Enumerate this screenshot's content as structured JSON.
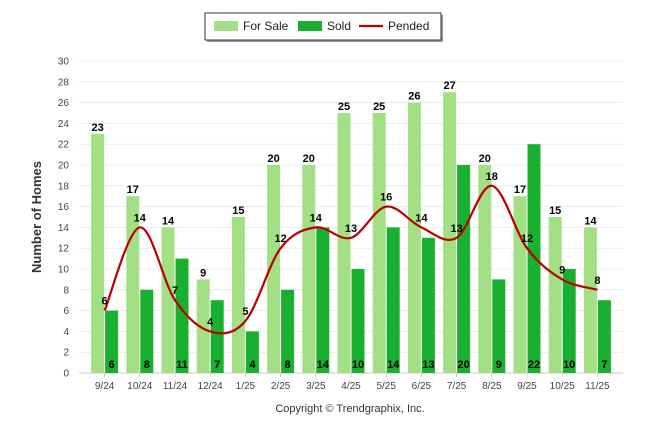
{
  "chart_data": {
    "type": "bar",
    "title": "",
    "xlabel": "",
    "ylabel": "Number of Homes",
    "ylim": [
      0,
      30
    ],
    "yticks": [
      0,
      2,
      4,
      6,
      8,
      10,
      12,
      14,
      16,
      18,
      20,
      22,
      24,
      26,
      28,
      30
    ],
    "grid": true,
    "legend_position": "top-center",
    "categories": [
      "9/24",
      "10/24",
      "11/24",
      "12/24",
      "1/25",
      "2/25",
      "3/25",
      "4/25",
      "5/25",
      "6/25",
      "7/25",
      "8/25",
      "9/25",
      "10/25",
      "11/25"
    ],
    "series": [
      {
        "name": "For Sale",
        "kind": "bar",
        "color": "#a3e085",
        "values": [
          23,
          17,
          14,
          9,
          15,
          20,
          20,
          25,
          25,
          26,
          27,
          20,
          17,
          15,
          14
        ]
      },
      {
        "name": "Sold",
        "kind": "bar",
        "color": "#1ab02f",
        "values": [
          6,
          8,
          11,
          7,
          4,
          8,
          14,
          10,
          14,
          13,
          20,
          9,
          22,
          10,
          7
        ]
      },
      {
        "name": "Pended",
        "kind": "line",
        "color": "#bb0000",
        "values": [
          6,
          14,
          7,
          4,
          5,
          12,
          14,
          13,
          16,
          14,
          13,
          18,
          12,
          9,
          8
        ]
      }
    ],
    "credit": "Copyright © Trendgraphix, Inc."
  }
}
